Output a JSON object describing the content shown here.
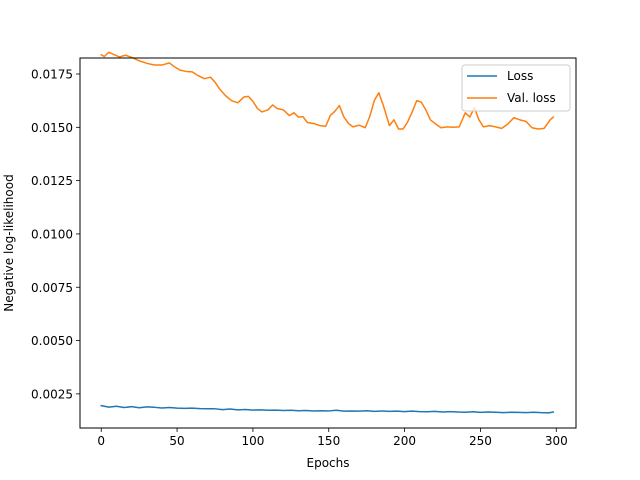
{
  "chart_data": {
    "type": "line",
    "title": "",
    "xlabel": "Epochs",
    "ylabel": "Negative log-likelihood",
    "xlim": [
      -14,
      313
    ],
    "ylim": [
      0.0009,
      0.01825
    ],
    "xticks": [
      0,
      50,
      100,
      150,
      200,
      250,
      300
    ],
    "xtick_labels": [
      "0",
      "50",
      "100",
      "150",
      "200",
      "250",
      "300"
    ],
    "yticks": [
      0.0025,
      0.005,
      0.0075,
      0.01,
      0.0125,
      0.015,
      0.0175
    ],
    "ytick_labels": [
      "0.0025",
      "0.0050",
      "0.0075",
      "0.0100",
      "0.0125",
      "0.0150",
      "0.0175"
    ],
    "grid": false,
    "legend_position": "top-right",
    "series": [
      {
        "name": "Loss",
        "color": "#1f77b4",
        "x": [
          0,
          5,
          10,
          15,
          20,
          25,
          30,
          35,
          40,
          45,
          50,
          55,
          60,
          65,
          70,
          75,
          80,
          85,
          90,
          95,
          100,
          105,
          110,
          115,
          120,
          125,
          130,
          135,
          140,
          145,
          150,
          155,
          160,
          165,
          170,
          175,
          180,
          185,
          190,
          195,
          200,
          205,
          210,
          215,
          220,
          225,
          230,
          235,
          240,
          245,
          250,
          255,
          260,
          265,
          270,
          275,
          280,
          285,
          290,
          295,
          298
        ],
        "y": [
          0.00195,
          0.00188,
          0.00192,
          0.00186,
          0.0019,
          0.00185,
          0.00189,
          0.00187,
          0.00184,
          0.00186,
          0.00183,
          0.00182,
          0.00183,
          0.00181,
          0.0018,
          0.0018,
          0.00176,
          0.00179,
          0.00175,
          0.00177,
          0.00174,
          0.00175,
          0.00173,
          0.00174,
          0.00172,
          0.00173,
          0.00171,
          0.00172,
          0.0017,
          0.00171,
          0.0017,
          0.00173,
          0.00169,
          0.0017,
          0.00169,
          0.00171,
          0.00168,
          0.0017,
          0.00168,
          0.00169,
          0.00167,
          0.00169,
          0.00167,
          0.00166,
          0.00168,
          0.00165,
          0.00167,
          0.00165,
          0.00164,
          0.00166,
          0.00163,
          0.00165,
          0.00164,
          0.00162,
          0.00164,
          0.00163,
          0.00162,
          0.00164,
          0.00162,
          0.00161,
          0.00165
        ]
      },
      {
        "name": "Val. loss",
        "color": "#ff7f0e",
        "x": [
          0,
          2,
          5,
          8,
          12,
          16,
          20,
          25,
          30,
          35,
          40,
          45,
          48,
          52,
          56,
          60,
          64,
          68,
          72,
          75,
          78,
          82,
          86,
          90,
          94,
          97,
          100,
          103,
          106,
          110,
          113,
          116,
          120,
          124,
          127,
          130,
          133,
          136,
          140,
          144,
          148,
          151,
          154,
          157,
          160,
          163,
          166,
          170,
          174,
          177,
          180,
          183,
          186,
          190,
          193,
          196,
          199,
          202,
          205,
          208,
          211,
          214,
          217,
          220,
          224,
          228,
          232,
          236,
          240,
          243,
          246,
          249,
          252,
          256,
          260,
          264,
          268,
          272,
          276,
          280,
          284,
          288,
          292,
          296,
          298
        ],
        "y": [
          0.0184,
          0.01832,
          0.01852,
          0.01842,
          0.0183,
          0.01838,
          0.01828,
          0.01812,
          0.018,
          0.01792,
          0.01792,
          0.01802,
          0.01785,
          0.01768,
          0.01762,
          0.0176,
          0.01742,
          0.01728,
          0.01735,
          0.01712,
          0.0168,
          0.01648,
          0.01625,
          0.01615,
          0.01642,
          0.01645,
          0.01622,
          0.01588,
          0.01572,
          0.01582,
          0.01605,
          0.01588,
          0.01582,
          0.01555,
          0.01568,
          0.01548,
          0.0155,
          0.01522,
          0.01518,
          0.01508,
          0.01505,
          0.01555,
          0.01575,
          0.01602,
          0.01548,
          0.01518,
          0.01502,
          0.0151,
          0.01498,
          0.0155,
          0.01625,
          0.01662,
          0.01602,
          0.01508,
          0.01535,
          0.01492,
          0.01492,
          0.01525,
          0.01572,
          0.01625,
          0.01618,
          0.01582,
          0.01535,
          0.01518,
          0.01498,
          0.01502,
          0.015,
          0.01502,
          0.01568,
          0.01548,
          0.01592,
          0.01535,
          0.01502,
          0.01508,
          0.01502,
          0.01495,
          0.01515,
          0.01545,
          0.01535,
          0.01528,
          0.01498,
          0.01492,
          0.01495,
          0.01535,
          0.01548
        ]
      }
    ]
  }
}
